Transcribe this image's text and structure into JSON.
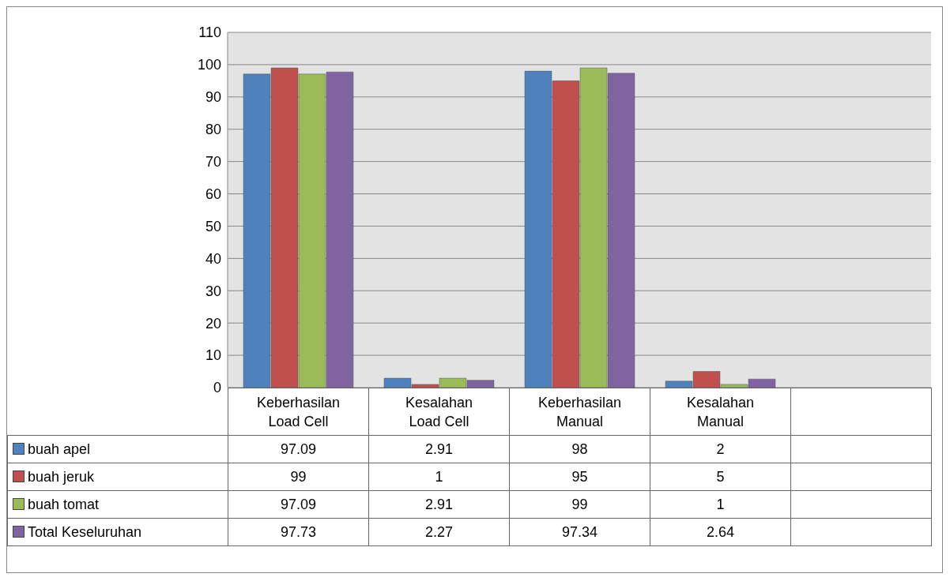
{
  "chart_data": {
    "type": "bar",
    "categories": [
      "Keberhasilan Load Cell",
      "Kesalahan Load Cell",
      "Keberhasilan Manual",
      "Kesalahan Manual",
      null
    ],
    "series": [
      {
        "name": "buah apel",
        "color": "#4f81bd",
        "values": [
          97.09,
          2.91,
          98,
          2,
          null
        ]
      },
      {
        "name": "buah jeruk",
        "color": "#c0504d",
        "values": [
          99,
          1,
          95,
          5,
          null
        ]
      },
      {
        "name": "buah tomat",
        "color": "#9bbb59",
        "values": [
          97.09,
          2.91,
          99,
          1,
          null
        ]
      },
      {
        "name": "Total Keseluruhan",
        "color": "#8064a2",
        "values": [
          97.73,
          2.27,
          97.34,
          2.64,
          null
        ]
      }
    ],
    "ylim": [
      0,
      110
    ],
    "yticks": [
      0,
      10,
      20,
      30,
      40,
      50,
      60,
      70,
      80,
      90,
      100,
      110
    ],
    "grid": "y",
    "data_labels": true,
    "legend": "bottom"
  }
}
